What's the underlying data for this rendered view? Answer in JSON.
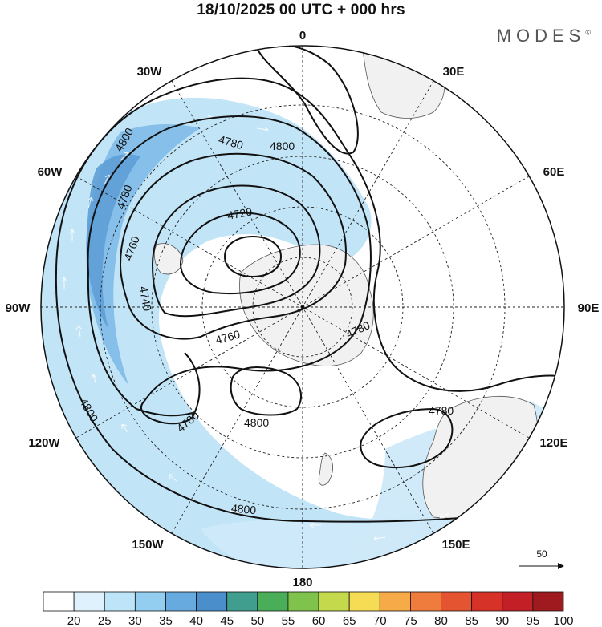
{
  "title": "18/10/2025  00 UTC  + 000 hrs",
  "brand": {
    "name": "MODES",
    "mark": "©"
  },
  "longitude_labels": [
    "0",
    "30E",
    "60E",
    "90E",
    "120E",
    "150E",
    "180",
    "150W",
    "120W",
    "90W",
    "60W",
    "30W"
  ],
  "contour_labels": [
    "4800",
    "4800",
    "4780",
    "4780",
    "4720",
    "4760",
    "4740",
    "4760",
    "4780",
    "4780",
    "4800",
    "4780",
    "4800",
    "4800"
  ],
  "reference_vector": {
    "value": "50"
  },
  "colorbar": {
    "ticks": [
      "20",
      "25",
      "30",
      "35",
      "40",
      "45",
      "50",
      "55",
      "60",
      "65",
      "70",
      "75",
      "80",
      "85",
      "90",
      "95",
      "100"
    ],
    "colors": [
      "#ffffff",
      "#dff1fc",
      "#bde4f8",
      "#93cdef",
      "#66aadf",
      "#4a8fcc",
      "#3f9e8e",
      "#4aad58",
      "#7fc24c",
      "#c4d94c",
      "#f5dc54",
      "#f6aa48",
      "#ef7c3c",
      "#e45430",
      "#d63228",
      "#c21f26",
      "#9e1a1e"
    ]
  }
}
